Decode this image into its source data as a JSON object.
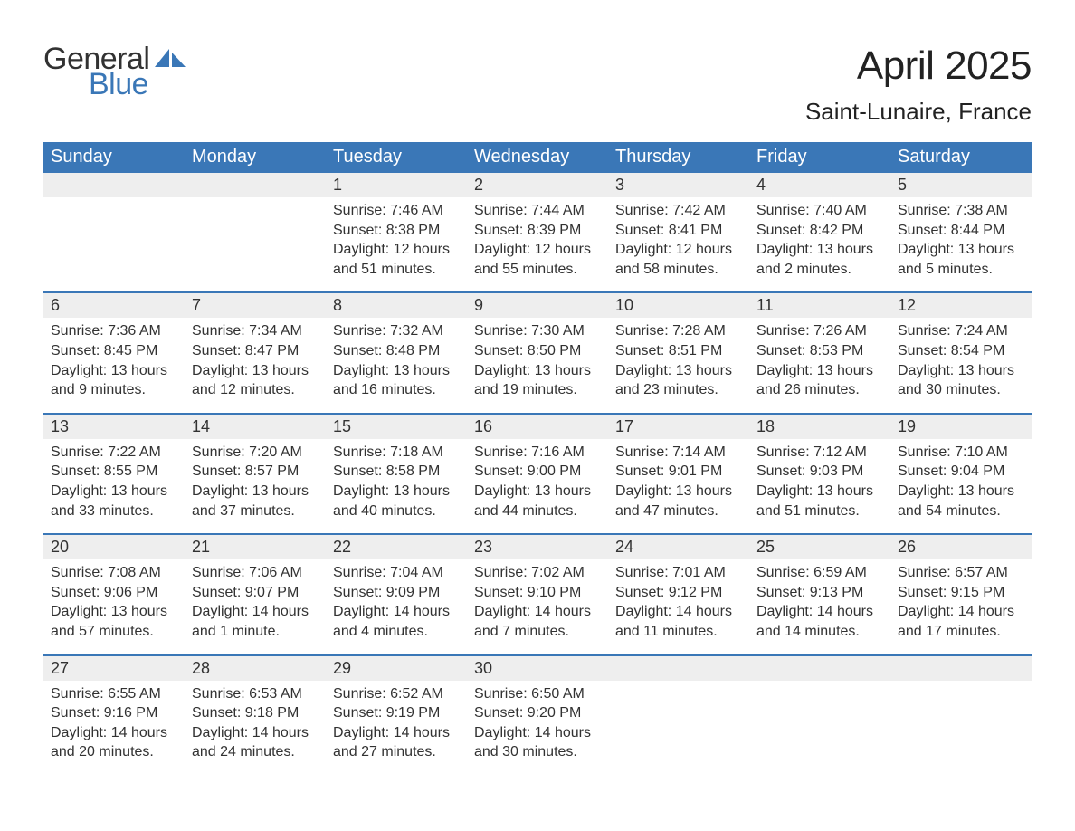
{
  "logo": {
    "line1": "General",
    "line2": "Blue",
    "icon_color": "#3a77b7",
    "text_color_1": "#323232",
    "text_color_2": "#3a77b7"
  },
  "header": {
    "month_title": "April 2025",
    "location": "Saint-Lunaire, France"
  },
  "colors": {
    "header_bg": "#3a77b7",
    "header_text": "#ffffff",
    "daynum_bg": "#eeeeee",
    "week_border": "#3a77b7",
    "body_text": "#323232",
    "background": "#ffffff"
  },
  "typography": {
    "title_fontsize": 44,
    "location_fontsize": 26,
    "weekday_fontsize": 20,
    "daynum_fontsize": 18,
    "body_fontsize": 16,
    "font_family": "Arial"
  },
  "layout": {
    "columns": 7,
    "rows": 5,
    "first_weekday_index": 2
  },
  "weekdays": [
    "Sunday",
    "Monday",
    "Tuesday",
    "Wednesday",
    "Thursday",
    "Friday",
    "Saturday"
  ],
  "days": [
    {
      "n": 1,
      "sunrise": "Sunrise: 7:46 AM",
      "sunset": "Sunset: 8:38 PM",
      "dl1": "Daylight: 12 hours",
      "dl2": "and 51 minutes."
    },
    {
      "n": 2,
      "sunrise": "Sunrise: 7:44 AM",
      "sunset": "Sunset: 8:39 PM",
      "dl1": "Daylight: 12 hours",
      "dl2": "and 55 minutes."
    },
    {
      "n": 3,
      "sunrise": "Sunrise: 7:42 AM",
      "sunset": "Sunset: 8:41 PM",
      "dl1": "Daylight: 12 hours",
      "dl2": "and 58 minutes."
    },
    {
      "n": 4,
      "sunrise": "Sunrise: 7:40 AM",
      "sunset": "Sunset: 8:42 PM",
      "dl1": "Daylight: 13 hours",
      "dl2": "and 2 minutes."
    },
    {
      "n": 5,
      "sunrise": "Sunrise: 7:38 AM",
      "sunset": "Sunset: 8:44 PM",
      "dl1": "Daylight: 13 hours",
      "dl2": "and 5 minutes."
    },
    {
      "n": 6,
      "sunrise": "Sunrise: 7:36 AM",
      "sunset": "Sunset: 8:45 PM",
      "dl1": "Daylight: 13 hours",
      "dl2": "and 9 minutes."
    },
    {
      "n": 7,
      "sunrise": "Sunrise: 7:34 AM",
      "sunset": "Sunset: 8:47 PM",
      "dl1": "Daylight: 13 hours",
      "dl2": "and 12 minutes."
    },
    {
      "n": 8,
      "sunrise": "Sunrise: 7:32 AM",
      "sunset": "Sunset: 8:48 PM",
      "dl1": "Daylight: 13 hours",
      "dl2": "and 16 minutes."
    },
    {
      "n": 9,
      "sunrise": "Sunrise: 7:30 AM",
      "sunset": "Sunset: 8:50 PM",
      "dl1": "Daylight: 13 hours",
      "dl2": "and 19 minutes."
    },
    {
      "n": 10,
      "sunrise": "Sunrise: 7:28 AM",
      "sunset": "Sunset: 8:51 PM",
      "dl1": "Daylight: 13 hours",
      "dl2": "and 23 minutes."
    },
    {
      "n": 11,
      "sunrise": "Sunrise: 7:26 AM",
      "sunset": "Sunset: 8:53 PM",
      "dl1": "Daylight: 13 hours",
      "dl2": "and 26 minutes."
    },
    {
      "n": 12,
      "sunrise": "Sunrise: 7:24 AM",
      "sunset": "Sunset: 8:54 PM",
      "dl1": "Daylight: 13 hours",
      "dl2": "and 30 minutes."
    },
    {
      "n": 13,
      "sunrise": "Sunrise: 7:22 AM",
      "sunset": "Sunset: 8:55 PM",
      "dl1": "Daylight: 13 hours",
      "dl2": "and 33 minutes."
    },
    {
      "n": 14,
      "sunrise": "Sunrise: 7:20 AM",
      "sunset": "Sunset: 8:57 PM",
      "dl1": "Daylight: 13 hours",
      "dl2": "and 37 minutes."
    },
    {
      "n": 15,
      "sunrise": "Sunrise: 7:18 AM",
      "sunset": "Sunset: 8:58 PM",
      "dl1": "Daylight: 13 hours",
      "dl2": "and 40 minutes."
    },
    {
      "n": 16,
      "sunrise": "Sunrise: 7:16 AM",
      "sunset": "Sunset: 9:00 PM",
      "dl1": "Daylight: 13 hours",
      "dl2": "and 44 minutes."
    },
    {
      "n": 17,
      "sunrise": "Sunrise: 7:14 AM",
      "sunset": "Sunset: 9:01 PM",
      "dl1": "Daylight: 13 hours",
      "dl2": "and 47 minutes."
    },
    {
      "n": 18,
      "sunrise": "Sunrise: 7:12 AM",
      "sunset": "Sunset: 9:03 PM",
      "dl1": "Daylight: 13 hours",
      "dl2": "and 51 minutes."
    },
    {
      "n": 19,
      "sunrise": "Sunrise: 7:10 AM",
      "sunset": "Sunset: 9:04 PM",
      "dl1": "Daylight: 13 hours",
      "dl2": "and 54 minutes."
    },
    {
      "n": 20,
      "sunrise": "Sunrise: 7:08 AM",
      "sunset": "Sunset: 9:06 PM",
      "dl1": "Daylight: 13 hours",
      "dl2": "and 57 minutes."
    },
    {
      "n": 21,
      "sunrise": "Sunrise: 7:06 AM",
      "sunset": "Sunset: 9:07 PM",
      "dl1": "Daylight: 14 hours",
      "dl2": "and 1 minute."
    },
    {
      "n": 22,
      "sunrise": "Sunrise: 7:04 AM",
      "sunset": "Sunset: 9:09 PM",
      "dl1": "Daylight: 14 hours",
      "dl2": "and 4 minutes."
    },
    {
      "n": 23,
      "sunrise": "Sunrise: 7:02 AM",
      "sunset": "Sunset: 9:10 PM",
      "dl1": "Daylight: 14 hours",
      "dl2": "and 7 minutes."
    },
    {
      "n": 24,
      "sunrise": "Sunrise: 7:01 AM",
      "sunset": "Sunset: 9:12 PM",
      "dl1": "Daylight: 14 hours",
      "dl2": "and 11 minutes."
    },
    {
      "n": 25,
      "sunrise": "Sunrise: 6:59 AM",
      "sunset": "Sunset: 9:13 PM",
      "dl1": "Daylight: 14 hours",
      "dl2": "and 14 minutes."
    },
    {
      "n": 26,
      "sunrise": "Sunrise: 6:57 AM",
      "sunset": "Sunset: 9:15 PM",
      "dl1": "Daylight: 14 hours",
      "dl2": "and 17 minutes."
    },
    {
      "n": 27,
      "sunrise": "Sunrise: 6:55 AM",
      "sunset": "Sunset: 9:16 PM",
      "dl1": "Daylight: 14 hours",
      "dl2": "and 20 minutes."
    },
    {
      "n": 28,
      "sunrise": "Sunrise: 6:53 AM",
      "sunset": "Sunset: 9:18 PM",
      "dl1": "Daylight: 14 hours",
      "dl2": "and 24 minutes."
    },
    {
      "n": 29,
      "sunrise": "Sunrise: 6:52 AM",
      "sunset": "Sunset: 9:19 PM",
      "dl1": "Daylight: 14 hours",
      "dl2": "and 27 minutes."
    },
    {
      "n": 30,
      "sunrise": "Sunrise: 6:50 AM",
      "sunset": "Sunset: 9:20 PM",
      "dl1": "Daylight: 14 hours",
      "dl2": "and 30 minutes."
    }
  ]
}
